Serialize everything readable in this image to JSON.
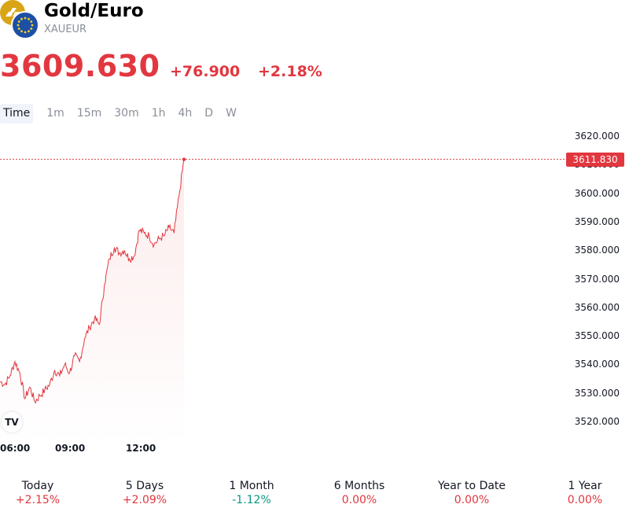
{
  "symbol": {
    "title": "Gold/Euro",
    "ticker": "XAUEUR"
  },
  "quote": {
    "price": "3609.630",
    "change": "+76.900",
    "change_percent": "+2.18%",
    "color": "#e2373f"
  },
  "timeframes": [
    "Time",
    "1m",
    "15m",
    "30m",
    "1h",
    "4h",
    "D",
    "W"
  ],
  "active_timeframe": "Time",
  "chart": {
    "last_price_tag": "3611.830",
    "y_axis_labels": [
      "3620.000",
      "3610.000",
      "3600.000",
      "3590.000",
      "3580.000",
      "3570.000",
      "3560.000",
      "3550.000",
      "3540.000",
      "3530.000",
      "3520.000"
    ],
    "x_axis_labels": [
      "06:00",
      "09:00",
      "12:00"
    ],
    "badge": "TV"
  },
  "chart_data": {
    "type": "line",
    "ylim": [
      3515,
      3625
    ],
    "x": [
      "05:00",
      "05:15",
      "05:30",
      "05:45",
      "06:00",
      "06:15",
      "06:30",
      "06:45",
      "07:00",
      "07:15",
      "07:30",
      "07:45",
      "08:00",
      "08:15",
      "08:30",
      "08:45",
      "09:00",
      "09:15",
      "09:30",
      "09:45",
      "10:00",
      "10:15",
      "10:30",
      "10:45",
      "11:00",
      "11:15",
      "11:30",
      "11:45",
      "12:00",
      "12:15",
      "12:30",
      "12:45",
      "13:00",
      "13:15",
      "13:30",
      "13:45",
      "14:00",
      "14:15"
    ],
    "values": [
      3534,
      3533,
      3536,
      3541,
      3537,
      3528,
      3532,
      3527,
      3529,
      3531,
      3533,
      3538,
      3536,
      3540,
      3537,
      3543,
      3541,
      3549,
      3553,
      3556,
      3554,
      3568,
      3577,
      3581,
      3579,
      3580,
      3577,
      3578,
      3587,
      3586,
      3585,
      3582,
      3584,
      3585,
      3588,
      3586,
      3599,
      3611.83
    ],
    "line_color": "#e2373f",
    "grid": false
  },
  "performance": [
    {
      "label": "Today",
      "value": "+2.15%",
      "color": "#e2373f"
    },
    {
      "label": "5 Days",
      "value": "+2.09%",
      "color": "#e2373f"
    },
    {
      "label": "1 Month",
      "value": "-1.12%",
      "color": "#089981"
    },
    {
      "label": "6 Months",
      "value": "0.00%",
      "color": "#e2373f"
    },
    {
      "label": "Year to Date",
      "value": "0.00%",
      "color": "#e2373f"
    },
    {
      "label": "1 Year",
      "value": "0.00%",
      "color": "#e2373f"
    }
  ],
  "icons": {
    "base_logo": "gold-bars-icon",
    "quote_logo": "eu-flag-icon",
    "badge": "tradingview-logo-icon"
  }
}
